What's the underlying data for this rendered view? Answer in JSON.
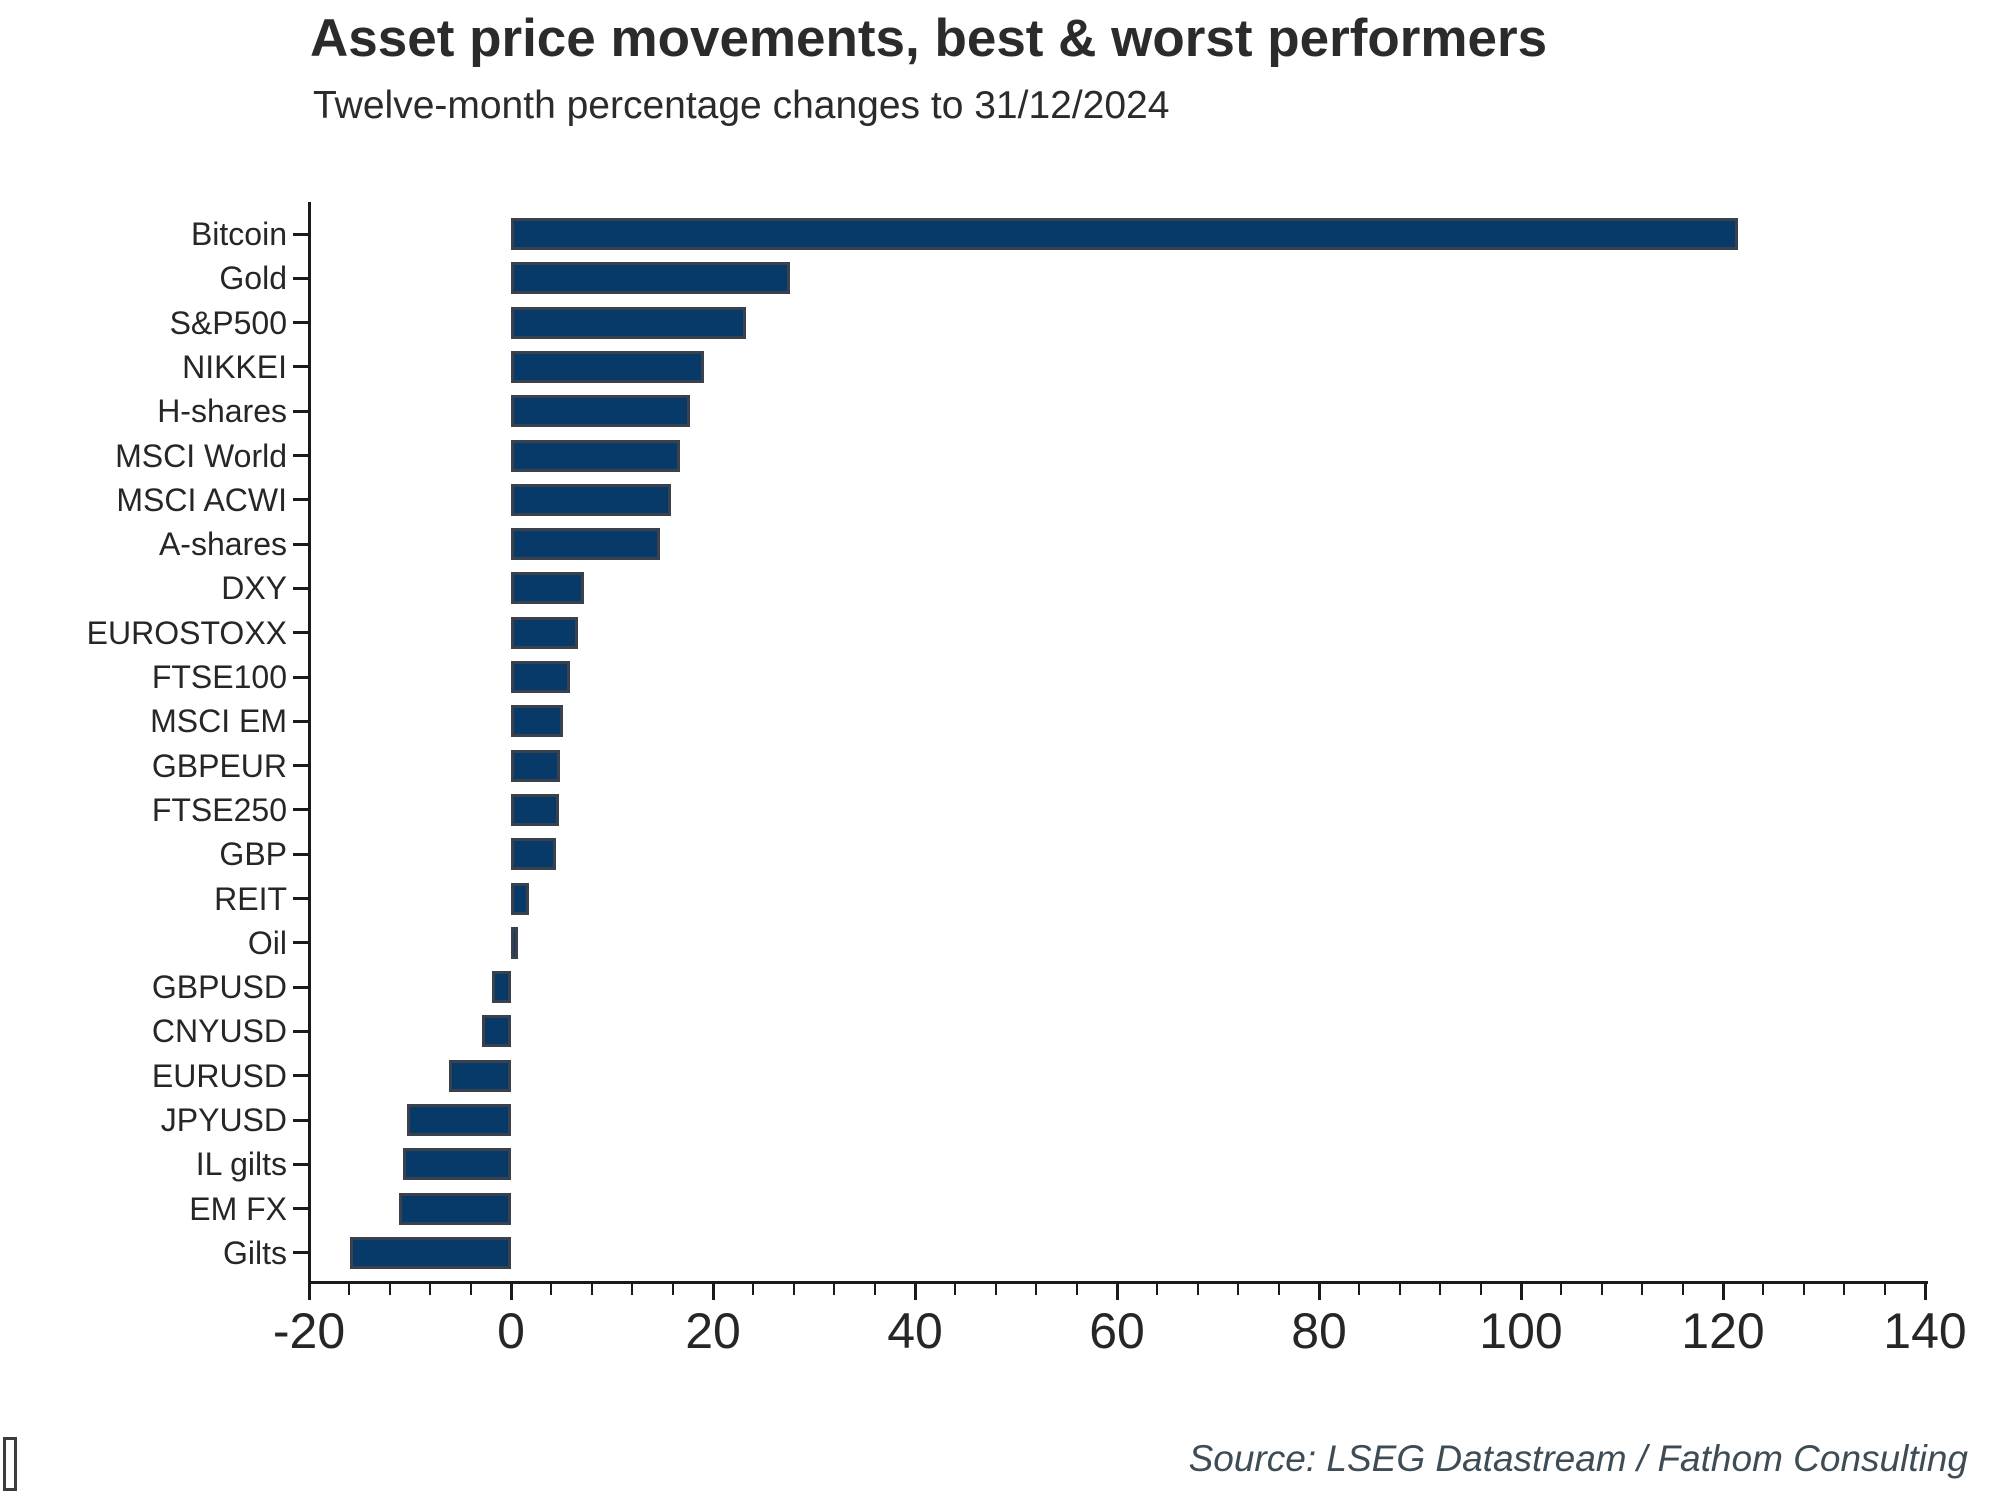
{
  "header": {
    "title": "Asset price movements, best & worst performers",
    "subtitle": "Twelve-month percentage changes to 31/12/2024"
  },
  "footer": {
    "source": "Source: LSEG Datastream / Fathom Consulting"
  },
  "colors": {
    "background": "#ffffff",
    "bar_fill": "#073a68",
    "bar_border": "#39424c",
    "axis": "#1a1a1a",
    "text": "#262626",
    "source_text": "#3e4c55"
  },
  "chart_data": {
    "type": "bar",
    "orientation": "horizontal",
    "title": "Asset price movements, best & worst performers",
    "subtitle": "Twelve-month percentage changes to 31/12/2024",
    "categories": [
      "Bitcoin",
      "Gold",
      "S&P500",
      "NIKKEI",
      "H-shares",
      "MSCI World",
      "MSCI ACWI",
      "A-shares",
      "DXY",
      "EUROSTOXX",
      "FTSE100",
      "MSCI EM",
      "GBPEUR",
      "FTSE250",
      "GBP",
      "REIT",
      "Oil",
      "GBPUSD",
      "CNYUSD",
      "EURUSD",
      "JPYUSD",
      "IL gilts",
      "EM FX",
      "Gilts"
    ],
    "values": [
      121.5,
      27.6,
      23.3,
      19.1,
      17.7,
      16.7,
      15.8,
      14.8,
      7.2,
      6.6,
      5.8,
      5.1,
      4.9,
      4.8,
      4.5,
      1.8,
      0.7,
      -1.9,
      -2.9,
      -6.1,
      -10.3,
      -10.7,
      -11.1,
      -15.9
    ],
    "xlabel": "",
    "ylabel": "",
    "xlim": [
      -20,
      140
    ],
    "x_major_ticks": [
      -20,
      0,
      20,
      40,
      60,
      80,
      100,
      120,
      140
    ],
    "x_minor_tick_step": 4,
    "grid": false,
    "legend_position": "none"
  }
}
